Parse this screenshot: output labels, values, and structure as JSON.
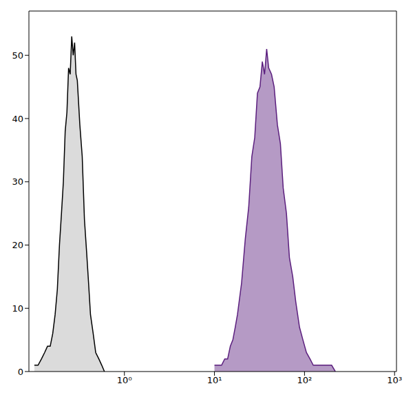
{
  "chart_data": {
    "type": "area",
    "log": "x",
    "xlim": [
      0.087,
      1050
    ],
    "xticks": [
      {
        "value": 1,
        "label": "10⁰"
      },
      {
        "value": 10,
        "label": "10¹"
      },
      {
        "value": 100,
        "label": "10²"
      },
      {
        "value": 1000,
        "label": "10³"
      }
    ],
    "ylim": [
      0,
      57
    ],
    "yticks": [
      0,
      10,
      20,
      30,
      40,
      50
    ],
    "grid": false,
    "series": [
      {
        "color": "#000000",
        "x": [
          0.1,
          0.11,
          0.12,
          0.13,
          0.14,
          0.15,
          0.16,
          0.17,
          0.18,
          0.19,
          0.2,
          0.21,
          0.22,
          0.23,
          0.24,
          0.25,
          0.26,
          0.27,
          0.28,
          0.29,
          0.3,
          0.32,
          0.34,
          0.36,
          0.38,
          0.4,
          0.42,
          0.45,
          0.48,
          0.52,
          0.56,
          0.6
        ],
        "values": [
          1,
          1,
          2,
          3,
          4,
          4,
          6,
          9,
          13,
          20,
          25,
          30,
          38,
          41,
          48,
          47,
          53,
          50,
          52,
          47,
          46,
          39,
          34,
          24,
          19,
          14,
          9,
          6,
          3,
          2,
          1,
          0
        ]
      },
      {
        "color": "#5b1f7e",
        "x": [
          10,
          11,
          12,
          13,
          14,
          15,
          16,
          17,
          18,
          20,
          22,
          24,
          26,
          28,
          30,
          32,
          34,
          36,
          38,
          40,
          43,
          46,
          50,
          54,
          58,
          63,
          68,
          74,
          80,
          88,
          96,
          105,
          115,
          125,
          140,
          160,
          180,
          200,
          220
        ],
        "values": [
          1,
          1,
          1,
          2,
          2,
          4,
          5,
          7,
          9,
          14,
          21,
          26,
          34,
          37,
          44,
          45,
          49,
          47,
          51,
          48,
          47,
          45,
          39,
          36,
          29,
          25,
          18,
          15,
          11,
          7,
          5,
          3,
          2,
          1,
          1,
          1,
          1,
          1,
          0
        ]
      }
    ]
  }
}
